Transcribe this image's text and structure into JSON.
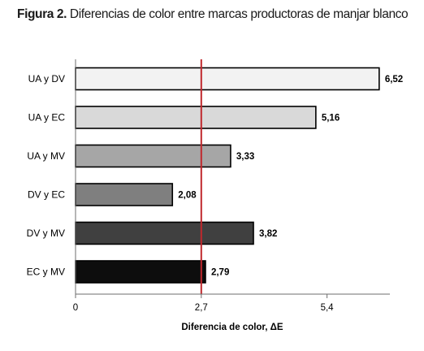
{
  "figure": {
    "label": "Figura 2.",
    "caption": "Diferencias de color entre marcas productoras de manjar blanco"
  },
  "chart_data": {
    "type": "bar",
    "orientation": "horizontal",
    "categories": [
      "UA y DV",
      "UA y EC",
      "UA y MV",
      "DV y EC",
      "DV y MV",
      "EC y MV"
    ],
    "values": [
      6.52,
      5.16,
      3.33,
      2.08,
      3.82,
      2.79
    ],
    "value_labels": [
      "6,52",
      "5,16",
      "3,33",
      "2,08",
      "3,82",
      "2,79"
    ],
    "bar_colors": [
      "#f2f2f2",
      "#d9d9d9",
      "#a6a6a6",
      "#7f7f7f",
      "#404040",
      "#0d0d0d"
    ],
    "bar_outline_color": "#000000",
    "xlabel": "Diferencia de color, ΔE",
    "ylabel": "",
    "xlim": [
      0,
      6.75
    ],
    "xticks": [
      0,
      2.7,
      5.4
    ],
    "xtick_labels": [
      "0",
      "2,7",
      "5,4"
    ],
    "reference_line": {
      "value": 2.7,
      "color": "#c0282d"
    },
    "grid": false,
    "legend": "none"
  }
}
